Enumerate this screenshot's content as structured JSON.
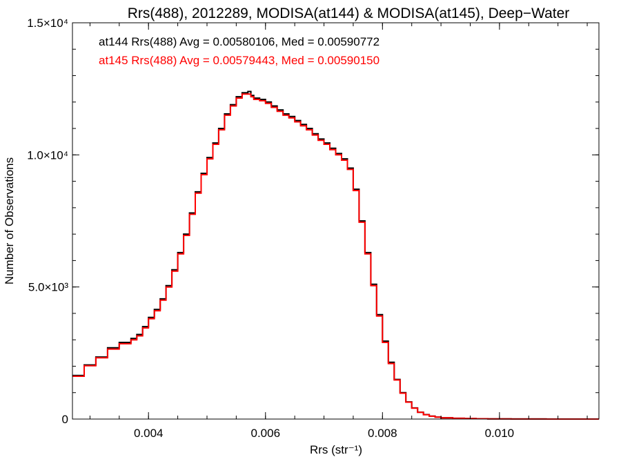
{
  "chart_data": {
    "type": "line",
    "title": "Rrs(488), 2012289, MODISA(at144) & MODISA(at145), Deep−Water",
    "xlabel": "Rrs (str⁻¹)",
    "ylabel": "Number of Observations",
    "xlim": [
      0.0027,
      0.0117
    ],
    "ylim": [
      0,
      15000
    ],
    "x_ticks": [
      {
        "value": 0.004,
        "label": "0.004"
      },
      {
        "value": 0.006,
        "label": "0.006"
      },
      {
        "value": 0.008,
        "label": "0.008"
      },
      {
        "value": 0.01,
        "label": "0.010"
      }
    ],
    "y_ticks": [
      {
        "value": 0,
        "label": "0"
      },
      {
        "value": 5000,
        "label": "5.0×10³"
      },
      {
        "value": 10000,
        "label": "1.0×10⁴"
      },
      {
        "value": 15000,
        "label": "1.5×10⁴"
      }
    ],
    "x_minor_step": 0.0005,
    "y_minor_step": 1000,
    "grid": false,
    "annotations": [
      {
        "text": "at144 Rrs(488) Avg = 0.00580106, Med = 0.00590772",
        "color": "#000000"
      },
      {
        "text": "at145 Rrs(488) Avg = 0.00579443, Med = 0.00590150",
        "color": "#ff0000"
      }
    ],
    "series": [
      {
        "color": "#000000",
        "step": "histogram",
        "x": [
          0.0027,
          0.0029,
          0.0031,
          0.0033,
          0.0035,
          0.0037,
          0.0038,
          0.0039,
          0.004,
          0.0041,
          0.0042,
          0.0043,
          0.0044,
          0.0045,
          0.0046,
          0.0047,
          0.0048,
          0.0049,
          0.005,
          0.0051,
          0.0052,
          0.0053,
          0.0054,
          0.0055,
          0.0056,
          0.0057,
          0.00575,
          0.0058,
          0.0059,
          0.006,
          0.0061,
          0.0062,
          0.0063,
          0.0064,
          0.0065,
          0.0066,
          0.0067,
          0.0068,
          0.0069,
          0.007,
          0.0071,
          0.0072,
          0.0073,
          0.0074,
          0.0075,
          0.0076,
          0.0077,
          0.0078,
          0.0079,
          0.008,
          0.0081,
          0.0082,
          0.0083,
          0.0084,
          0.0085,
          0.0086,
          0.0087,
          0.0088,
          0.0089,
          0.009,
          0.0092,
          0.0094,
          0.0096,
          0.0098,
          0.01,
          0.0102,
          0.0105,
          0.0108,
          0.0111,
          0.0114,
          0.0117
        ],
        "y": [
          1650,
          2050,
          2350,
          2700,
          2900,
          3050,
          3200,
          3500,
          3850,
          4150,
          4550,
          5050,
          5650,
          6300,
          7000,
          7800,
          8600,
          9300,
          9900,
          10450,
          11000,
          11550,
          11900,
          12200,
          12350,
          12400,
          12250,
          12150,
          12100,
          12000,
          11850,
          11700,
          11550,
          11450,
          11300,
          11150,
          11000,
          10800,
          10600,
          10450,
          10250,
          10050,
          9850,
          9500,
          8700,
          7500,
          6300,
          5100,
          3950,
          2950,
          2150,
          1500,
          1000,
          650,
          420,
          260,
          170,
          110,
          75,
          50,
          30,
          20,
          12,
          8,
          5,
          3,
          2,
          1,
          1,
          0,
          0
        ]
      },
      {
        "color": "#ff0000",
        "step": "histogram",
        "x": [
          0.0027,
          0.0029,
          0.0031,
          0.0033,
          0.0035,
          0.0037,
          0.0038,
          0.0039,
          0.004,
          0.0041,
          0.0042,
          0.0043,
          0.0044,
          0.0045,
          0.0046,
          0.0047,
          0.0048,
          0.0049,
          0.005,
          0.0051,
          0.0052,
          0.0053,
          0.0054,
          0.0055,
          0.0056,
          0.0057,
          0.00575,
          0.0058,
          0.0059,
          0.006,
          0.0061,
          0.0062,
          0.0063,
          0.0064,
          0.0065,
          0.0066,
          0.0067,
          0.0068,
          0.0069,
          0.007,
          0.0071,
          0.0072,
          0.0073,
          0.0074,
          0.0075,
          0.0076,
          0.0077,
          0.0078,
          0.0079,
          0.008,
          0.0081,
          0.0082,
          0.0083,
          0.0084,
          0.0085,
          0.0086,
          0.0087,
          0.0088,
          0.0089,
          0.009,
          0.0092,
          0.0094,
          0.0096,
          0.0098,
          0.01,
          0.0102,
          0.0105,
          0.0108,
          0.0111,
          0.0114,
          0.0117
        ],
        "y": [
          1620,
          2020,
          2320,
          2650,
          2850,
          3000,
          3150,
          3450,
          3800,
          4100,
          4500,
          5000,
          5600,
          6250,
          6950,
          7750,
          8550,
          9250,
          9850,
          10400,
          10950,
          11500,
          11850,
          12150,
          12300,
          12300,
          12200,
          12100,
          12050,
          11950,
          11800,
          11650,
          11500,
          11400,
          11250,
          11100,
          10950,
          10750,
          10550,
          10400,
          10200,
          10000,
          9800,
          9450,
          8650,
          7450,
          6250,
          5050,
          3900,
          2900,
          2100,
          1480,
          980,
          640,
          410,
          255,
          165,
          108,
          72,
          48,
          29,
          19,
          12,
          8,
          5,
          3,
          2,
          1,
          1,
          0,
          0
        ]
      }
    ]
  }
}
